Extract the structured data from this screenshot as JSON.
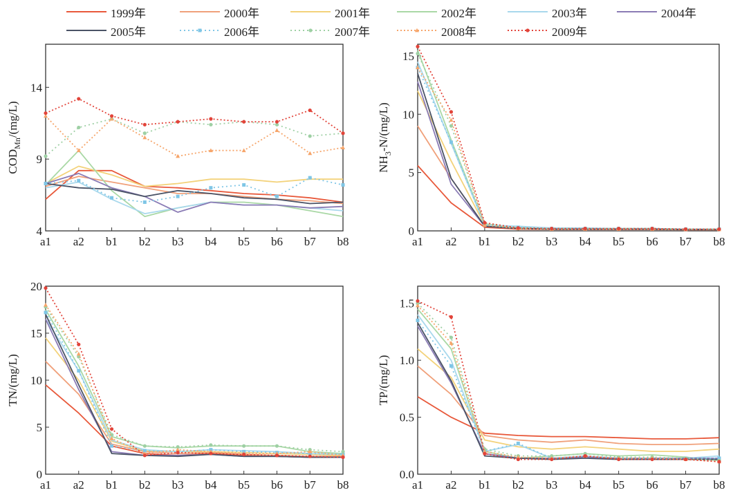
{
  "legend": [
    {
      "name": "1999年",
      "color": "#e8583a",
      "marker": "none",
      "dash": ""
    },
    {
      "name": "2000年",
      "color": "#f0a07a",
      "marker": "none",
      "dash": ""
    },
    {
      "name": "2001年",
      "color": "#f3d27a",
      "marker": "none",
      "dash": ""
    },
    {
      "name": "2002年",
      "color": "#a9d8a5",
      "marker": "none",
      "dash": ""
    },
    {
      "name": "2003年",
      "color": "#a8d8ec",
      "marker": "none",
      "dash": ""
    },
    {
      "name": "2004年",
      "color": "#8a7bb5",
      "marker": "none",
      "dash": ""
    },
    {
      "name": "2005年",
      "color": "#4a5366",
      "marker": "none",
      "dash": ""
    },
    {
      "name": "2006年",
      "color": "#7fc6e6",
      "marker": "square",
      "dash": "2,4"
    },
    {
      "name": "2007年",
      "color": "#9ed0a4",
      "marker": "circle",
      "dash": "2,4"
    },
    {
      "name": "2008年",
      "color": "#f6a56a",
      "marker": "tri",
      "dash": "2,3"
    },
    {
      "name": "2009年",
      "color": "#e2443a",
      "marker": "circle",
      "dash": "2,3"
    }
  ],
  "chart_data": [
    {
      "type": "line",
      "ylabel": "CODMn/(mg/L)",
      "ylabel_main": "COD",
      "ylabel_sub": "Mn",
      "ylabel_rest": "/(mg/L)",
      "categories": [
        "a1",
        "a2",
        "b1",
        "b2",
        "b3",
        "b4",
        "b5",
        "b6",
        "b7",
        "b8"
      ],
      "ylim": [
        4,
        17
      ],
      "yticks": [
        4,
        9,
        14
      ],
      "series": [
        {
          "name": "1999年",
          "values": [
            6.2,
            8.2,
            8.2,
            7.1,
            7.0,
            6.8,
            6.6,
            6.5,
            6.3,
            6.0
          ]
        },
        {
          "name": "2000年",
          "values": [
            7.1,
            7.8,
            7.4,
            7.0,
            6.6,
            6.6,
            6.4,
            6.2,
            6.1,
            5.9
          ]
        },
        {
          "name": "2001年",
          "values": [
            7.3,
            8.5,
            7.9,
            7.1,
            7.3,
            7.6,
            7.6,
            7.4,
            7.6,
            7.6
          ]
        },
        {
          "name": "2002年",
          "values": [
            7.2,
            9.6,
            6.8,
            5.0,
            5.6,
            6.0,
            6.0,
            5.8,
            5.4,
            5.0
          ]
        },
        {
          "name": "2003年",
          "values": [
            7.0,
            7.4,
            6.2,
            5.2,
            5.6,
            6.0,
            5.8,
            5.8,
            5.6,
            5.4
          ]
        },
        {
          "name": "2004年",
          "values": [
            7.3,
            8.0,
            7.0,
            6.4,
            5.3,
            6.0,
            5.8,
            5.8,
            5.6,
            5.7
          ]
        },
        {
          "name": "2005年",
          "values": [
            7.3,
            7.0,
            6.9,
            6.4,
            6.8,
            6.6,
            6.3,
            6.2,
            5.9,
            6.0
          ]
        },
        {
          "name": "2006年",
          "values": [
            7.3,
            7.5,
            6.3,
            6.0,
            6.4,
            7.0,
            7.2,
            6.4,
            7.7,
            7.2
          ]
        },
        {
          "name": "2007年",
          "values": [
            9.2,
            11.2,
            11.8,
            10.8,
            11.6,
            11.4,
            11.6,
            11.4,
            10.6,
            10.8
          ]
        },
        {
          "name": "2008年",
          "values": [
            12.0,
            9.6,
            11.8,
            10.5,
            9.2,
            9.6,
            9.6,
            11.0,
            9.4,
            9.8
          ]
        },
        {
          "name": "2009年",
          "values": [
            12.2,
            13.2,
            12.0,
            11.4,
            11.6,
            11.8,
            11.6,
            11.6,
            12.4,
            10.8
          ]
        }
      ]
    },
    {
      "type": "line",
      "ylabel": "NH3-N/(mg/L)",
      "ylabel_main": "NH",
      "ylabel_sub": "3",
      "ylabel_rest": "-N/(mg/L)",
      "categories": [
        "a1",
        "a2",
        "b1",
        "b2",
        "b3",
        "b4",
        "b5",
        "b6",
        "b7",
        "b8"
      ],
      "ylim": [
        0,
        16
      ],
      "yticks": [
        0,
        5,
        10,
        15
      ],
      "series": [
        {
          "name": "1999年",
          "values": [
            5.6,
            2.4,
            0.3,
            0.15,
            0.12,
            0.12,
            0.12,
            0.12,
            0.1,
            0.1
          ]
        },
        {
          "name": "2000年",
          "values": [
            9.0,
            4.5,
            0.4,
            0.2,
            0.15,
            0.15,
            0.15,
            0.15,
            0.12,
            0.12
          ]
        },
        {
          "name": "2001年",
          "values": [
            12.0,
            6.0,
            0.5,
            0.2,
            0.15,
            0.15,
            0.15,
            0.15,
            0.12,
            0.12
          ]
        },
        {
          "name": "2002年",
          "values": [
            15.5,
            7.8,
            0.6,
            0.3,
            0.2,
            0.2,
            0.2,
            0.2,
            0.15,
            0.15
          ]
        },
        {
          "name": "2003年",
          "values": [
            14.5,
            7.5,
            0.5,
            0.4,
            0.25,
            0.25,
            0.2,
            0.2,
            0.15,
            0.15
          ]
        },
        {
          "name": "2004年",
          "values": [
            12.8,
            4.0,
            0.4,
            0.2,
            0.15,
            0.15,
            0.15,
            0.15,
            0.12,
            0.12
          ]
        },
        {
          "name": "2005年",
          "values": [
            13.5,
            4.5,
            0.4,
            0.2,
            0.15,
            0.15,
            0.15,
            0.15,
            0.12,
            0.12
          ]
        },
        {
          "name": "2006年",
          "values": [
            14.0,
            7.6,
            0.5,
            0.3,
            0.2,
            0.2,
            0.2,
            0.2,
            0.15,
            0.15
          ]
        },
        {
          "name": "2007年",
          "values": [
            15.2,
            9.0,
            0.6,
            0.2,
            0.2,
            0.2,
            0.2,
            0.2,
            0.15,
            0.15
          ]
        },
        {
          "name": "2008年",
          "values": [
            14.0,
            9.5,
            0.5,
            0.2,
            0.15,
            0.15,
            0.15,
            0.15,
            0.12,
            0.12
          ]
        },
        {
          "name": "2009年",
          "values": [
            15.8,
            10.2,
            0.7,
            0.25,
            0.2,
            0.2,
            0.2,
            0.2,
            0.15,
            0.15
          ]
        }
      ]
    },
    {
      "type": "line",
      "ylabel": "TN/(mg/L)",
      "ylabel_main": "TN/(mg/L)",
      "ylabel_sub": "",
      "ylabel_rest": "",
      "categories": [
        "a1",
        "a2",
        "b1",
        "b2",
        "b3",
        "b4",
        "b5",
        "b6",
        "b7",
        "b8"
      ],
      "ylim": [
        0,
        20
      ],
      "yticks": [
        0,
        5,
        10,
        15,
        20
      ],
      "series": [
        {
          "name": "1999年",
          "values": [
            9.5,
            6.5,
            3.0,
            2.2,
            2.0,
            2.2,
            2.0,
            1.9,
            1.8,
            1.8
          ]
        },
        {
          "name": "2000年",
          "values": [
            12.0,
            8.5,
            3.2,
            2.4,
            2.2,
            2.3,
            2.1,
            2.0,
            1.9,
            1.9
          ]
        },
        {
          "name": "2001年",
          "values": [
            14.5,
            10.0,
            3.5,
            2.5,
            2.4,
            2.4,
            2.3,
            2.2,
            2.1,
            2.0
          ]
        },
        {
          "name": "2002年",
          "values": [
            17.5,
            11.5,
            4.0,
            3.0,
            2.8,
            3.0,
            3.0,
            3.0,
            2.4,
            2.2
          ]
        },
        {
          "name": "2003年",
          "values": [
            16.5,
            11.0,
            3.6,
            2.6,
            2.4,
            2.6,
            2.5,
            2.4,
            2.2,
            2.1
          ]
        },
        {
          "name": "2004年",
          "values": [
            16.5,
            9.0,
            2.4,
            2.0,
            2.0,
            2.1,
            1.9,
            1.9,
            1.8,
            1.8
          ]
        },
        {
          "name": "2005年",
          "values": [
            17.0,
            9.5,
            2.2,
            2.0,
            1.9,
            2.1,
            1.9,
            1.9,
            1.8,
            1.8
          ]
        },
        {
          "name": "2006年",
          "values": [
            17.2,
            11.0,
            3.0,
            2.5,
            2.4,
            2.6,
            2.4,
            2.3,
            2.2,
            2.1
          ]
        },
        {
          "name": "2007年",
          "values": [
            17.8,
            12.5,
            4.2,
            3.0,
            2.9,
            3.1,
            3.0,
            3.0,
            2.6,
            2.4
          ]
        },
        {
          "name": "2008年",
          "values": [
            18.0,
            12.8,
            3.8,
            2.2,
            2.6,
            2.4,
            2.2,
            2.2,
            2.4,
            2.0
          ]
        },
        {
          "name": "2009年",
          "values": [
            19.8,
            13.8,
            4.8,
            2.0,
            2.3,
            2.2,
            2.1,
            2.0,
            1.9,
            1.8
          ]
        }
      ]
    },
    {
      "type": "line",
      "ylabel": "TP/(mg/L)",
      "ylabel_main": "TP/(mg/L)",
      "ylabel_sub": "",
      "ylabel_rest": "",
      "categories": [
        "a1",
        "a2",
        "b1",
        "b2",
        "b3",
        "b4",
        "b5",
        "b6",
        "b7",
        "b8"
      ],
      "ylim": [
        0,
        1.65
      ],
      "yticks": [
        0.0,
        0.5,
        1.0,
        1.5
      ],
      "ytick_labels": [
        "0.0",
        "0.5",
        "1.0",
        "1.5"
      ],
      "series": [
        {
          "name": "1999年",
          "values": [
            0.68,
            0.5,
            0.36,
            0.34,
            0.33,
            0.33,
            0.32,
            0.31,
            0.31,
            0.32
          ]
        },
        {
          "name": "2000年",
          "values": [
            0.95,
            0.7,
            0.34,
            0.3,
            0.28,
            0.3,
            0.27,
            0.26,
            0.26,
            0.27
          ]
        },
        {
          "name": "2001年",
          "values": [
            1.1,
            0.85,
            0.3,
            0.24,
            0.22,
            0.24,
            0.22,
            0.2,
            0.2,
            0.22
          ]
        },
        {
          "name": "2002年",
          "values": [
            1.45,
            1.1,
            0.2,
            0.14,
            0.16,
            0.18,
            0.16,
            0.17,
            0.15,
            0.12
          ]
        },
        {
          "name": "2003年",
          "values": [
            1.4,
            1.0,
            0.2,
            0.26,
            0.14,
            0.16,
            0.14,
            0.14,
            0.14,
            0.16
          ]
        },
        {
          "name": "2004年",
          "values": [
            1.3,
            0.8,
            0.18,
            0.14,
            0.14,
            0.15,
            0.14,
            0.14,
            0.14,
            0.14
          ]
        },
        {
          "name": "2005年",
          "values": [
            1.33,
            0.82,
            0.16,
            0.14,
            0.13,
            0.14,
            0.13,
            0.13,
            0.13,
            0.13
          ]
        },
        {
          "name": "2006年",
          "values": [
            1.35,
            0.95,
            0.2,
            0.27,
            0.14,
            0.16,
            0.14,
            0.14,
            0.14,
            0.14
          ]
        },
        {
          "name": "2007年",
          "values": [
            1.5,
            1.2,
            0.22,
            0.16,
            0.16,
            0.18,
            0.15,
            0.15,
            0.14,
            0.12
          ]
        },
        {
          "name": "2008年",
          "values": [
            1.48,
            1.15,
            0.2,
            0.15,
            0.14,
            0.16,
            0.14,
            0.14,
            0.13,
            0.11
          ]
        },
        {
          "name": "2009年",
          "values": [
            1.52,
            1.38,
            0.18,
            0.13,
            0.13,
            0.16,
            0.13,
            0.13,
            0.13,
            0.11
          ]
        }
      ]
    }
  ]
}
